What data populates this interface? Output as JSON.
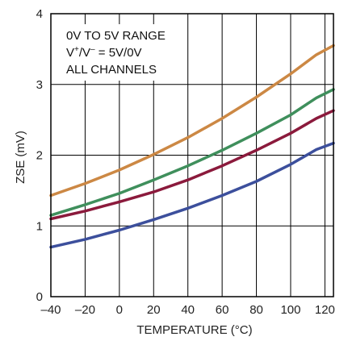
{
  "chart_data": {
    "type": "line",
    "xlabel": "TEMPERATURE (°C)",
    "ylabel": "ZSE (mV)",
    "xlim": [
      -40,
      125
    ],
    "ylim": [
      0,
      4
    ],
    "x_ticks": [
      -40,
      -20,
      0,
      20,
      40,
      60,
      80,
      100,
      120
    ],
    "y_ticks": [
      0,
      1,
      2,
      3,
      4
    ],
    "x_tick_labels": [
      "–40",
      "–20",
      "0",
      "20",
      "40",
      "60",
      "80",
      "100",
      "120"
    ],
    "y_tick_labels": [
      "0",
      "1",
      "2",
      "3",
      "4"
    ],
    "grid": true,
    "annotation": {
      "line1": "0V TO 5V RANGE",
      "line2_v": "V",
      "line2_sup1": "+",
      "line2_slash": "/V",
      "line2_sup2": "–",
      "line2_rest": " = 5V/0V",
      "line3": "ALL CHANNELS"
    },
    "x": [
      -40,
      -20,
      0,
      20,
      40,
      60,
      80,
      100,
      115,
      125
    ],
    "series": [
      {
        "color": "#cc8844",
        "values": [
          1.43,
          1.6,
          1.79,
          2.01,
          2.25,
          2.52,
          2.82,
          3.15,
          3.42,
          3.55
        ]
      },
      {
        "color": "#3f8f5c",
        "values": [
          1.15,
          1.3,
          1.46,
          1.65,
          1.85,
          2.07,
          2.31,
          2.57,
          2.81,
          2.93
        ]
      },
      {
        "color": "#8b1a3c",
        "values": [
          1.1,
          1.21,
          1.34,
          1.48,
          1.65,
          1.85,
          2.07,
          2.31,
          2.52,
          2.63
        ]
      },
      {
        "color": "#3c4f9c",
        "values": [
          0.7,
          0.81,
          0.94,
          1.09,
          1.25,
          1.43,
          1.63,
          1.87,
          2.08,
          2.17
        ]
      }
    ]
  }
}
